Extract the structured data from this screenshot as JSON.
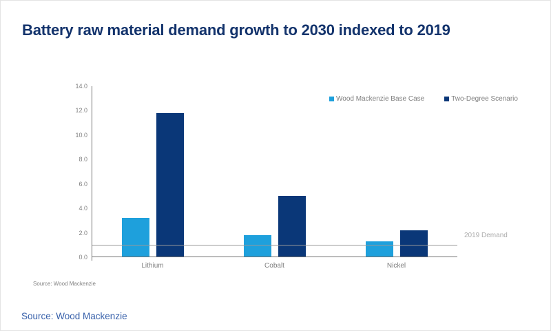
{
  "slide": {
    "title": "Battery raw material demand growth to 2030 indexed to 2019",
    "chart_source_note": "Source: Wood Mackenzie",
    "footer_source": "Source: Wood Mackenzie"
  },
  "colors": {
    "title_navy": "#13336C",
    "base_case_blue": "#1EA0DC",
    "two_degree_navy": "#0A3778",
    "axis_gray": "#6E6E6E",
    "label_gray": "#7F7F7F",
    "reference_label_gray": "#ACACAC",
    "footer_blue": "#3760AA"
  },
  "chart_data": {
    "type": "bar",
    "title": "Battery raw material demand growth to 2030 indexed to 2019",
    "categories": [
      "Lithium",
      "Cobalt",
      "Nickel"
    ],
    "series": [
      {
        "name": "Wood Mackenzie Base Case",
        "color": "#1EA0DC",
        "values": [
          3.2,
          1.8,
          1.3
        ]
      },
      {
        "name": "Two-Degree Scenario",
        "color": "#0A3778",
        "values": [
          11.8,
          5.0,
          2.2
        ]
      }
    ],
    "xlabel": "",
    "ylabel": "",
    "ylim": [
      0,
      14
    ],
    "yticks": [
      "0.0",
      "2.0",
      "4.0",
      "6.0",
      "8.0",
      "10.0",
      "12.0",
      "14.0"
    ],
    "grid": false,
    "legend_position": "top-right",
    "reference_line": {
      "value": 1.0,
      "label": "2019 Demand"
    }
  }
}
